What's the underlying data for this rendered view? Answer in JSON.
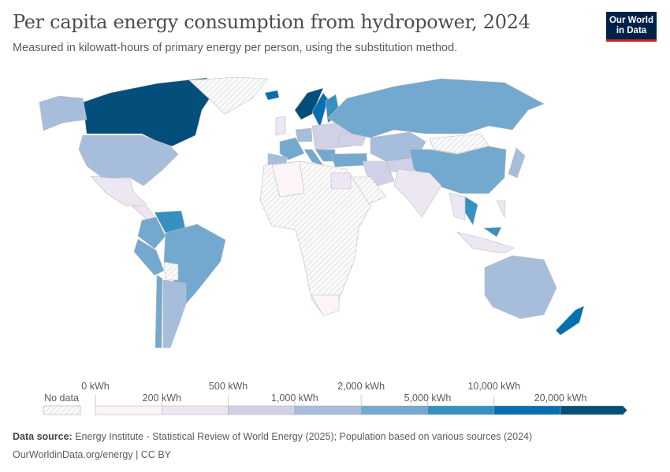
{
  "header": {
    "title": "Per capita energy consumption from hydropower, 2024",
    "subtitle": "Measured in kilowatt-hours of primary energy per person, using the substitution method.",
    "logo_text": "Our World in Data"
  },
  "legend": {
    "no_data_label": "No data",
    "ticks": [
      "0 kWh",
      "200 kWh",
      "500 kWh",
      "1,000 kWh",
      "2,000 kWh",
      "5,000 kWh",
      "10,000 kWh",
      "20,000 kWh"
    ],
    "colors": [
      "#fdf4f9",
      "#ece7f2",
      "#d0d1e6",
      "#a6bddb",
      "#74a9cf",
      "#3690c0",
      "#0570b0",
      "#034e7b"
    ],
    "no_data_color": "#e6e6e6"
  },
  "map_data": {
    "year": 2024,
    "unit": "kWh per person",
    "regions": [
      {
        "name": "Canada",
        "bin": 7
      },
      {
        "name": "Alaska (USA)",
        "bin": 3
      },
      {
        "name": "Greenland",
        "bin": null
      },
      {
        "name": "United States",
        "bin": 3
      },
      {
        "name": "Mexico",
        "bin": 1
      },
      {
        "name": "Central America",
        "bin": 1
      },
      {
        "name": "Venezuela",
        "bin": 5
      },
      {
        "name": "Colombia",
        "bin": 4
      },
      {
        "name": "Brazil",
        "bin": 4
      },
      {
        "name": "Peru",
        "bin": 4
      },
      {
        "name": "Bolivia",
        "bin": null
      },
      {
        "name": "Argentina",
        "bin": 3
      },
      {
        "name": "Chile",
        "bin": 4
      },
      {
        "name": "Norway",
        "bin": 7
      },
      {
        "name": "Sweden",
        "bin": 6
      },
      {
        "name": "Finland",
        "bin": 5
      },
      {
        "name": "Iceland",
        "bin": 6
      },
      {
        "name": "United Kingdom",
        "bin": 1
      },
      {
        "name": "France",
        "bin": 4
      },
      {
        "name": "Spain",
        "bin": 3
      },
      {
        "name": "Germany",
        "bin": 3
      },
      {
        "name": "Italy",
        "bin": 4
      },
      {
        "name": "Eastern Europe",
        "bin": 2
      },
      {
        "name": "Balkans",
        "bin": 4
      },
      {
        "name": "Turkey",
        "bin": 4
      },
      {
        "name": "Ukraine",
        "bin": 2
      },
      {
        "name": "Russia",
        "bin": 4
      },
      {
        "name": "Kazakhstan",
        "bin": 3
      },
      {
        "name": "Central Asia",
        "bin": 2
      },
      {
        "name": "Mongolia",
        "bin": null
      },
      {
        "name": "China",
        "bin": 4
      },
      {
        "name": "Japan",
        "bin": 3
      },
      {
        "name": "India",
        "bin": 1
      },
      {
        "name": "Iran",
        "bin": 2
      },
      {
        "name": "Saudi Arabia",
        "bin": null
      },
      {
        "name": "Africa",
        "bin": null
      },
      {
        "name": "Algeria",
        "bin": 0
      },
      {
        "name": "Egypt",
        "bin": 1
      },
      {
        "name": "South Africa",
        "bin": 0
      },
      {
        "name": "Vietnam",
        "bin": 5
      },
      {
        "name": "Thailand",
        "bin": 1
      },
      {
        "name": "Indonesia",
        "bin": 1
      },
      {
        "name": "Malaysia",
        "bin": 5
      },
      {
        "name": "Philippines",
        "bin": 1
      },
      {
        "name": "Australia",
        "bin": 3
      },
      {
        "name": "New Zealand",
        "bin": 6
      }
    ]
  },
  "footer": {
    "source_label": "Data source:",
    "source_text": "Energy Institute - Statistical Review of World Energy (2025); Population based on various sources (2024)",
    "link": "OurWorldinData.org/energy | CC BY"
  }
}
